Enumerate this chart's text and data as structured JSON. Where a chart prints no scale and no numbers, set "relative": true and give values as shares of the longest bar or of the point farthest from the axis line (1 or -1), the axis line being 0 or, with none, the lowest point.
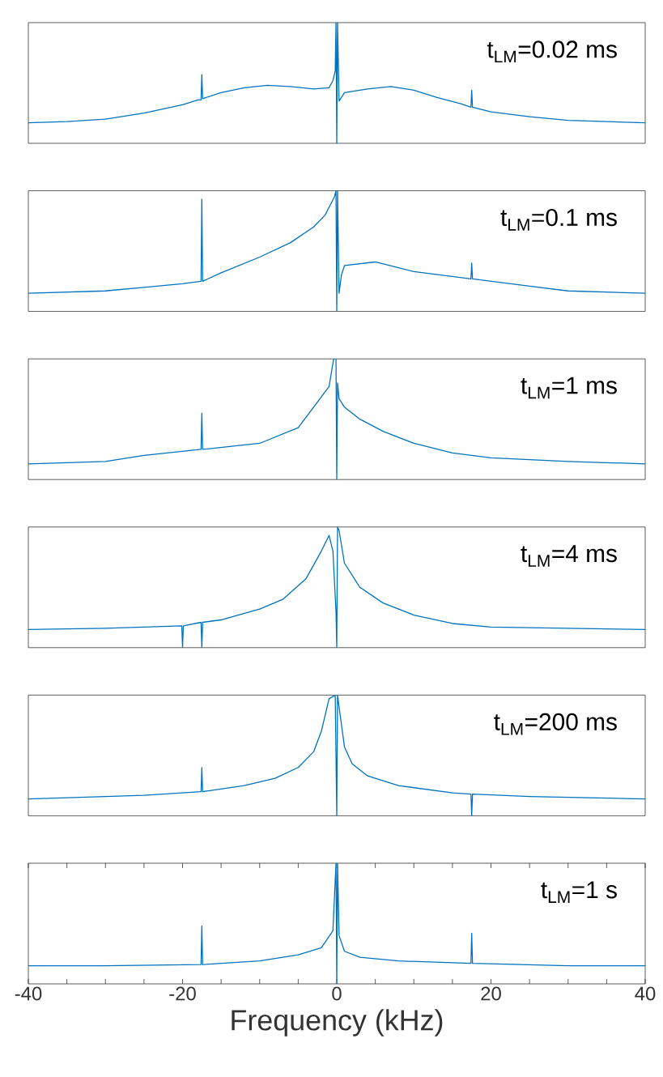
{
  "chart_data": [
    {
      "type": "line",
      "relative": true,
      "xlim": [
        -40,
        40
      ],
      "tick_labels": false,
      "color": "#0072bd",
      "annotations": [
        "t$_{LM}$=0.02 ms"
      ],
      "x": [
        -40,
        -35,
        -30,
        -25,
        -20,
        -18,
        -17.6,
        -17.5,
        -17.4,
        -15,
        -12,
        -9,
        -6,
        -3,
        -1,
        -0.5,
        -0.2,
        -0.1,
        0,
        0.1,
        0.3,
        1,
        4,
        7,
        10,
        13,
        16,
        17.4,
        17.5,
        17.6,
        20,
        25,
        30,
        35,
        40
      ],
      "values": [
        0.17,
        0.18,
        0.2,
        0.25,
        0.32,
        0.36,
        0.36,
        0.57,
        0.37,
        0.42,
        0.46,
        0.48,
        0.47,
        0.45,
        0.46,
        0.52,
        0.6,
        1.0,
        0.0,
        1.0,
        0.35,
        0.42,
        0.45,
        0.47,
        0.44,
        0.38,
        0.33,
        0.3,
        0.44,
        0.3,
        0.26,
        0.22,
        0.19,
        0.18,
        0.17
      ]
    },
    {
      "type": "line",
      "relative": true,
      "xlim": [
        -40,
        40
      ],
      "tick_labels": false,
      "color": "#0072bd",
      "annotations": [
        "t$_{LM}$=0.1 ms"
      ],
      "x": [
        -40,
        -30,
        -25,
        -20,
        -17.6,
        -17.5,
        -17.4,
        -15,
        -10,
        -6,
        -3,
        -1.5,
        -0.7,
        -0.3,
        -0.1,
        0,
        0.1,
        0.3,
        0.6,
        1,
        5,
        10,
        17.4,
        17.5,
        17.6,
        25,
        30,
        40
      ],
      "values": [
        0.15,
        0.17,
        0.2,
        0.23,
        0.25,
        0.93,
        0.25,
        0.32,
        0.45,
        0.57,
        0.7,
        0.8,
        0.9,
        0.95,
        1.0,
        0.0,
        1.0,
        0.15,
        0.3,
        0.38,
        0.41,
        0.33,
        0.27,
        0.4,
        0.27,
        0.21,
        0.17,
        0.15
      ]
    },
    {
      "type": "line",
      "relative": true,
      "xlim": [
        -40,
        40
      ],
      "tick_labels": false,
      "color": "#0072bd",
      "annotations": [
        "t$_{LM}$=1 ms"
      ],
      "x": [
        -40,
        -30,
        -25,
        -17.6,
        -17.5,
        -17.4,
        -10,
        -5,
        -1,
        -0.4,
        -0.1,
        0,
        0.1,
        0.3,
        1,
        3,
        6,
        10,
        15,
        20,
        30,
        40
      ],
      "values": [
        0.13,
        0.15,
        0.2,
        0.25,
        0.55,
        0.25,
        0.3,
        0.43,
        0.77,
        1.0,
        1.0,
        0.0,
        0.8,
        0.67,
        0.6,
        0.5,
        0.4,
        0.3,
        0.22,
        0.18,
        0.15,
        0.13
      ]
    },
    {
      "type": "line",
      "relative": true,
      "xlim": [
        -40,
        40
      ],
      "tick_labels": false,
      "color": "#0072bd",
      "annotations": [
        "t$_{LM}$=4 ms"
      ],
      "x": [
        -40,
        -30,
        -25,
        -20.1,
        -20,
        -19.9,
        -17.6,
        -17.5,
        -17.4,
        -15,
        -10,
        -7,
        -4,
        -2,
        -1,
        -0.5,
        -0.1,
        0,
        0.1,
        0.3,
        1,
        3,
        6,
        10,
        15,
        20,
        40
      ],
      "values": [
        0.15,
        0.16,
        0.17,
        0.18,
        0.0,
        0.18,
        0.21,
        0.0,
        0.21,
        0.23,
        0.32,
        0.4,
        0.57,
        0.8,
        0.93,
        0.8,
        0.3,
        0.0,
        1.0,
        0.97,
        0.7,
        0.5,
        0.37,
        0.27,
        0.2,
        0.17,
        0.15
      ]
    },
    {
      "type": "line",
      "relative": true,
      "xlim": [
        -40,
        40
      ],
      "tick_labels": false,
      "color": "#0072bd",
      "annotations": [
        "t$_{LM}$=200 ms"
      ],
      "x": [
        -40,
        -25,
        -17.6,
        -17.5,
        -17.4,
        -12,
        -8,
        -5,
        -3,
        -2,
        -1,
        -0.2,
        0,
        0.1,
        0.3,
        1,
        2,
        4,
        8,
        15,
        17.4,
        17.5,
        17.6,
        25,
        40
      ],
      "values": [
        0.14,
        0.17,
        0.2,
        0.4,
        0.2,
        0.25,
        0.31,
        0.4,
        0.53,
        0.7,
        0.97,
        1.0,
        0.0,
        1.0,
        0.9,
        0.57,
        0.43,
        0.33,
        0.25,
        0.19,
        0.18,
        0.0,
        0.18,
        0.16,
        0.14
      ]
    },
    {
      "type": "line",
      "relative": true,
      "xlim": [
        -40,
        40
      ],
      "tick_labels": "x",
      "color": "#0072bd",
      "annotations": [
        "t$_{LM}$=1 s"
      ],
      "xlabel": "Frequency (kHz)",
      "xticks": [
        {
          "value": -40,
          "label": "-40"
        },
        {
          "value": -35,
          "label": null
        },
        {
          "value": -30,
          "label": null
        },
        {
          "value": -25,
          "label": null
        },
        {
          "value": -20,
          "label": "-20"
        },
        {
          "value": -15,
          "label": null
        },
        {
          "value": -10,
          "label": null
        },
        {
          "value": -5,
          "label": null
        },
        0,
        {
          "value": 5,
          "label": null
        },
        {
          "value": 10,
          "label": null
        },
        {
          "value": 15,
          "label": null
        },
        20,
        {
          "value": 25,
          "label": null
        },
        {
          "value": 30,
          "label": null
        },
        {
          "value": 35,
          "label": null
        },
        40
      ],
      "x": [
        -40,
        -30,
        -17.6,
        -17.5,
        -17.4,
        -10,
        -5,
        -2,
        -0.5,
        -0.1,
        0,
        0.1,
        0.3,
        1,
        3,
        8,
        17.4,
        17.5,
        17.6,
        30,
        40
      ],
      "values": [
        0.15,
        0.15,
        0.16,
        0.48,
        0.16,
        0.19,
        0.24,
        0.3,
        0.44,
        1.0,
        0.0,
        1.0,
        0.4,
        0.27,
        0.22,
        0.19,
        0.17,
        0.42,
        0.17,
        0.15,
        0.15
      ]
    }
  ]
}
